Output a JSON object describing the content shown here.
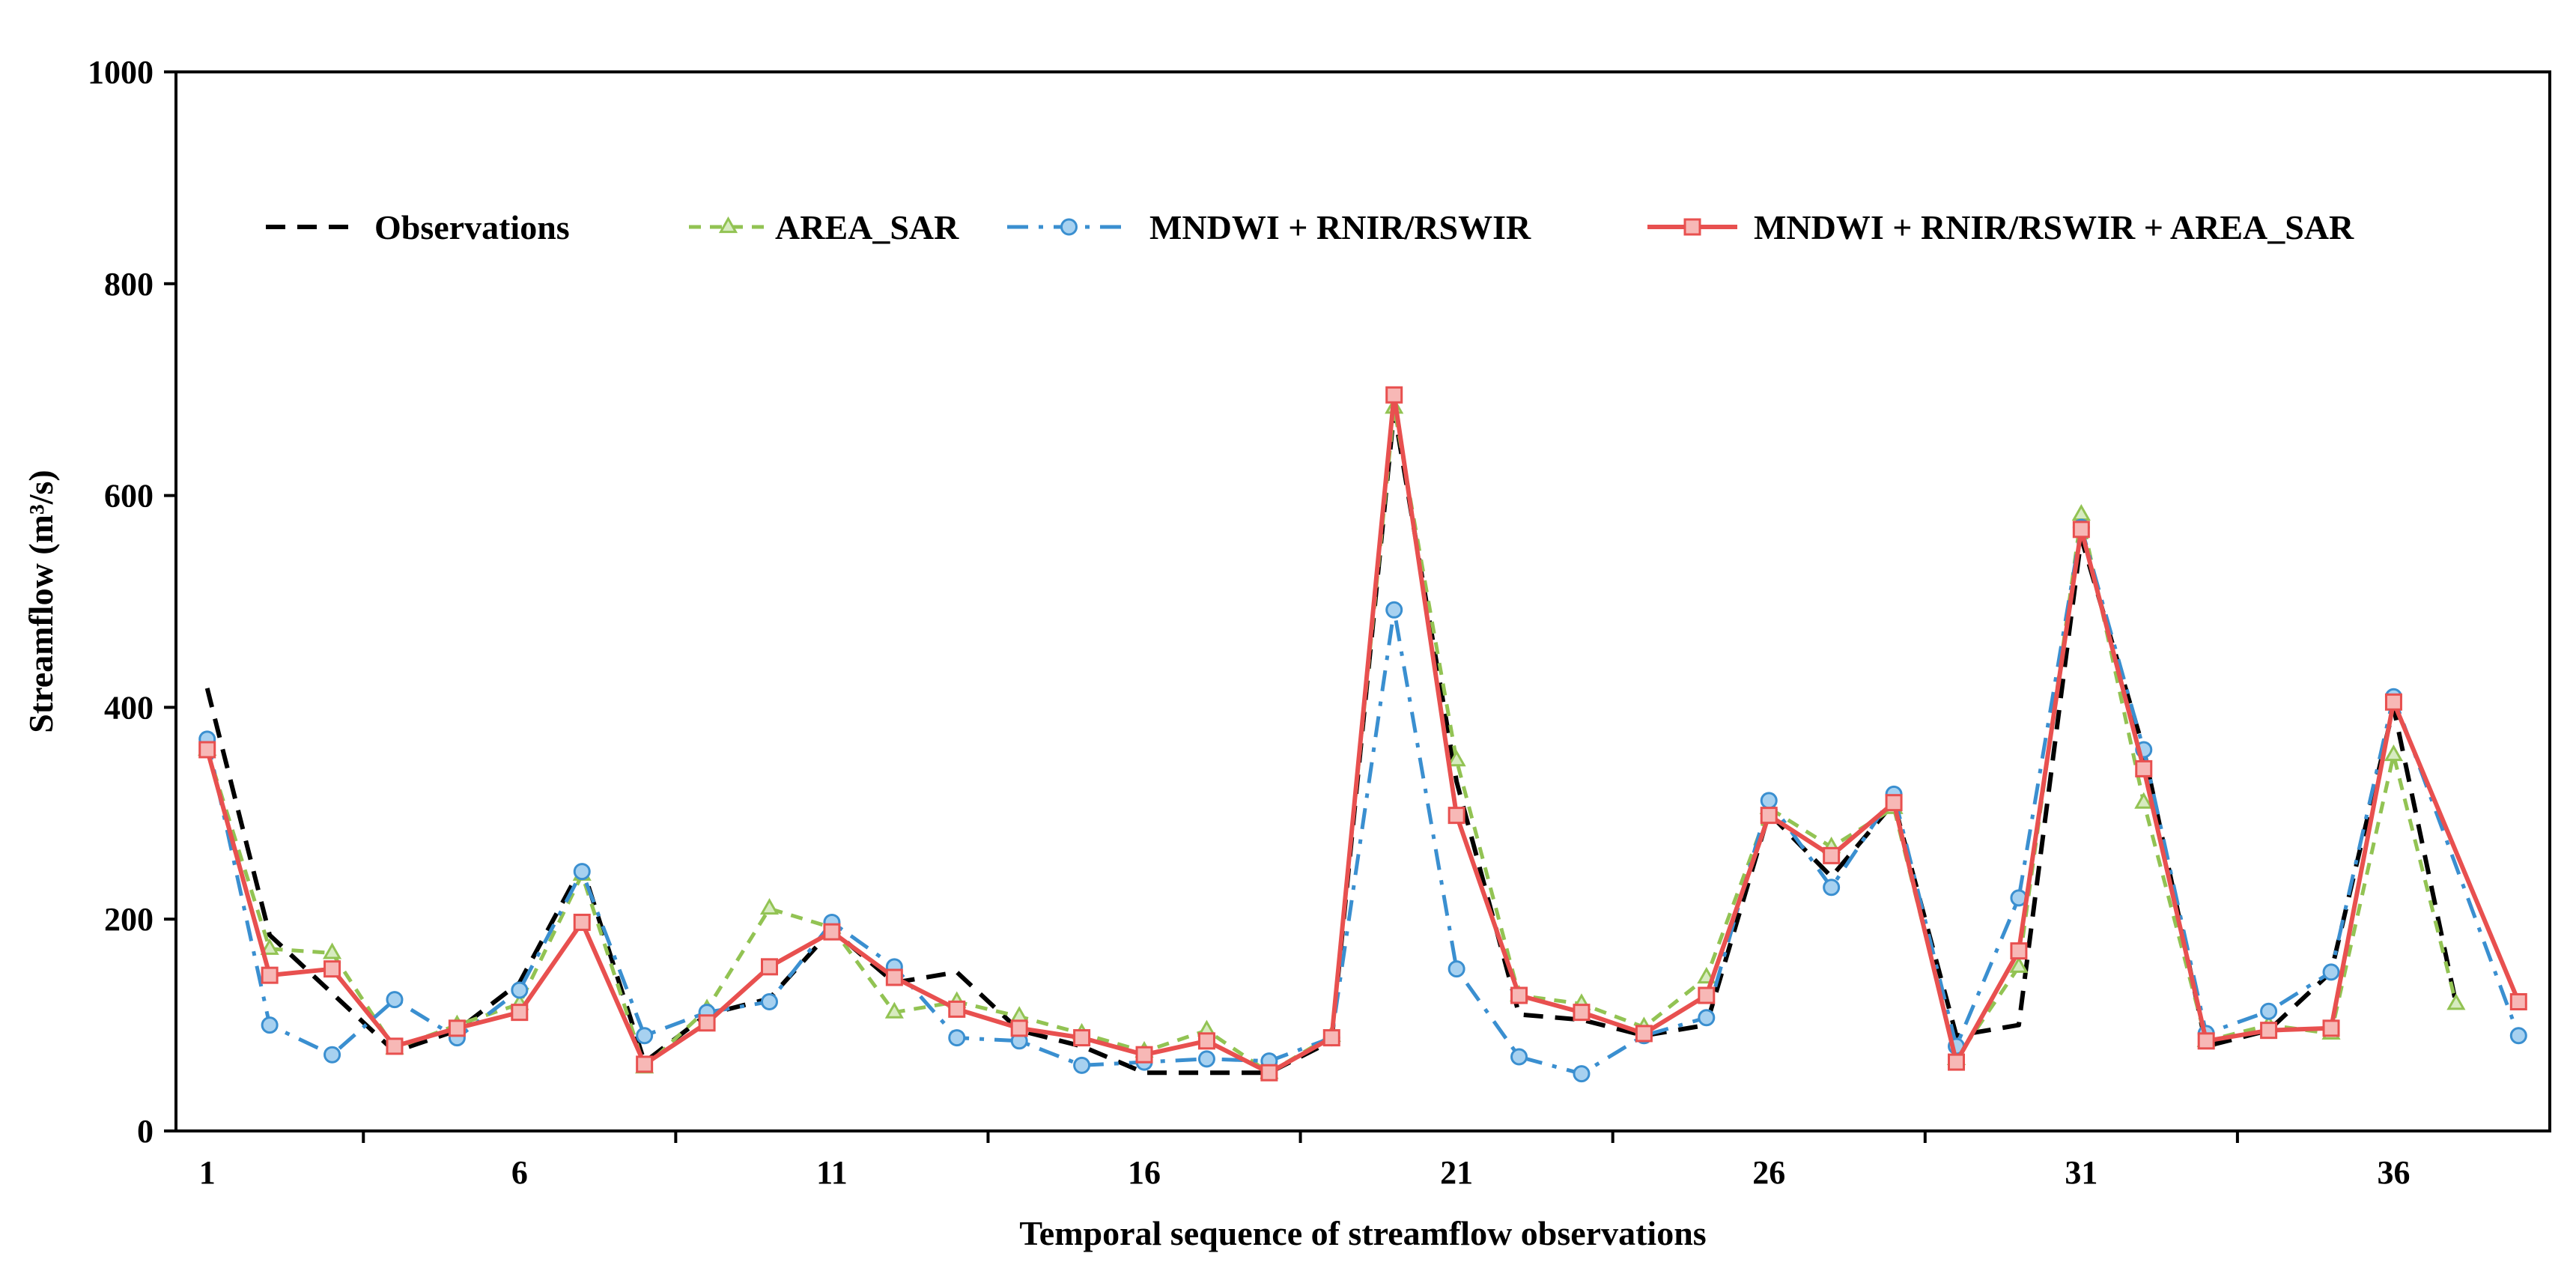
{
  "chart_data": {
    "type": "line",
    "title": "",
    "xlabel": "Temporal sequence of streamflow observations",
    "ylabel": "Streamflow (m³/s)",
    "ylim": [
      0,
      1000
    ],
    "yticks": [
      0,
      200,
      400,
      600,
      800,
      1000
    ],
    "xlim": [
      0.5,
      38.5
    ],
    "xticks": [
      1,
      6,
      11,
      16,
      21,
      26,
      31,
      36
    ],
    "xtick_labels": [
      "1",
      "6",
      "11",
      "16",
      "21",
      "26",
      "31",
      "36"
    ],
    "ytick_labels": [
      "0",
      "200",
      "400",
      "600",
      "800",
      "1000"
    ],
    "legend_position": "top",
    "x": [
      1,
      2,
      3,
      4,
      5,
      6,
      7,
      8,
      9,
      10,
      11,
      12,
      13,
      14,
      15,
      16,
      17,
      18,
      19,
      20,
      21,
      22,
      23,
      24,
      25,
      26,
      27,
      28,
      29,
      30,
      31,
      32,
      33,
      34,
      35,
      36,
      37,
      38
    ],
    "series": [
      {
        "name": "Observations",
        "color": "#000000",
        "dash": "dash",
        "marker": "none",
        "values": [
          418,
          185,
          130,
          75,
          95,
          140,
          250,
          65,
          110,
          125,
          190,
          140,
          150,
          95,
          80,
          55,
          55,
          55,
          85,
          680,
          330,
          110,
          105,
          90,
          100,
          300,
          240,
          310,
          90,
          100,
          560,
          360,
          80,
          95,
          150,
          400,
          120,
          null
        ]
      },
      {
        "name": "AREA_SAR",
        "color": "#92c353",
        "dash": "shortdash",
        "marker": "triangle",
        "values": [
          360,
          172,
          168,
          78,
          100,
          120,
          242,
          60,
          115,
          210,
          192,
          112,
          122,
          108,
          92,
          75,
          95,
          55,
          90,
          683,
          350,
          128,
          120,
          98,
          145,
          305,
          268,
          305,
          68,
          155,
          582,
          310,
          85,
          100,
          92,
          355,
          120,
          null
        ]
      },
      {
        "name": "MNDWI + RNIR/RSWIR",
        "color": "#3a8fd0",
        "dash": "dashdot",
        "marker": "circle",
        "values": [
          370,
          100,
          72,
          124,
          88,
          133,
          245,
          90,
          112,
          122,
          197,
          155,
          88,
          85,
          62,
          65,
          68,
          66,
          88,
          492,
          153,
          70,
          54,
          90,
          107,
          312,
          230,
          318,
          80,
          220,
          570,
          360,
          92,
          113,
          150,
          410,
          null,
          90
        ]
      },
      {
        "name": "MNDWI + RNIR/RSWIR + AREA_SAR",
        "color": "#e8504f",
        "dash": "solid",
        "marker": "square",
        "values": [
          360,
          147,
          153,
          80,
          97,
          112,
          197,
          63,
          102,
          155,
          188,
          145,
          115,
          97,
          88,
          72,
          85,
          55,
          88,
          695,
          298,
          128,
          112,
          92,
          128,
          298,
          260,
          310,
          65,
          170,
          568,
          342,
          85,
          95,
          97,
          405,
          null,
          122
        ]
      }
    ]
  }
}
